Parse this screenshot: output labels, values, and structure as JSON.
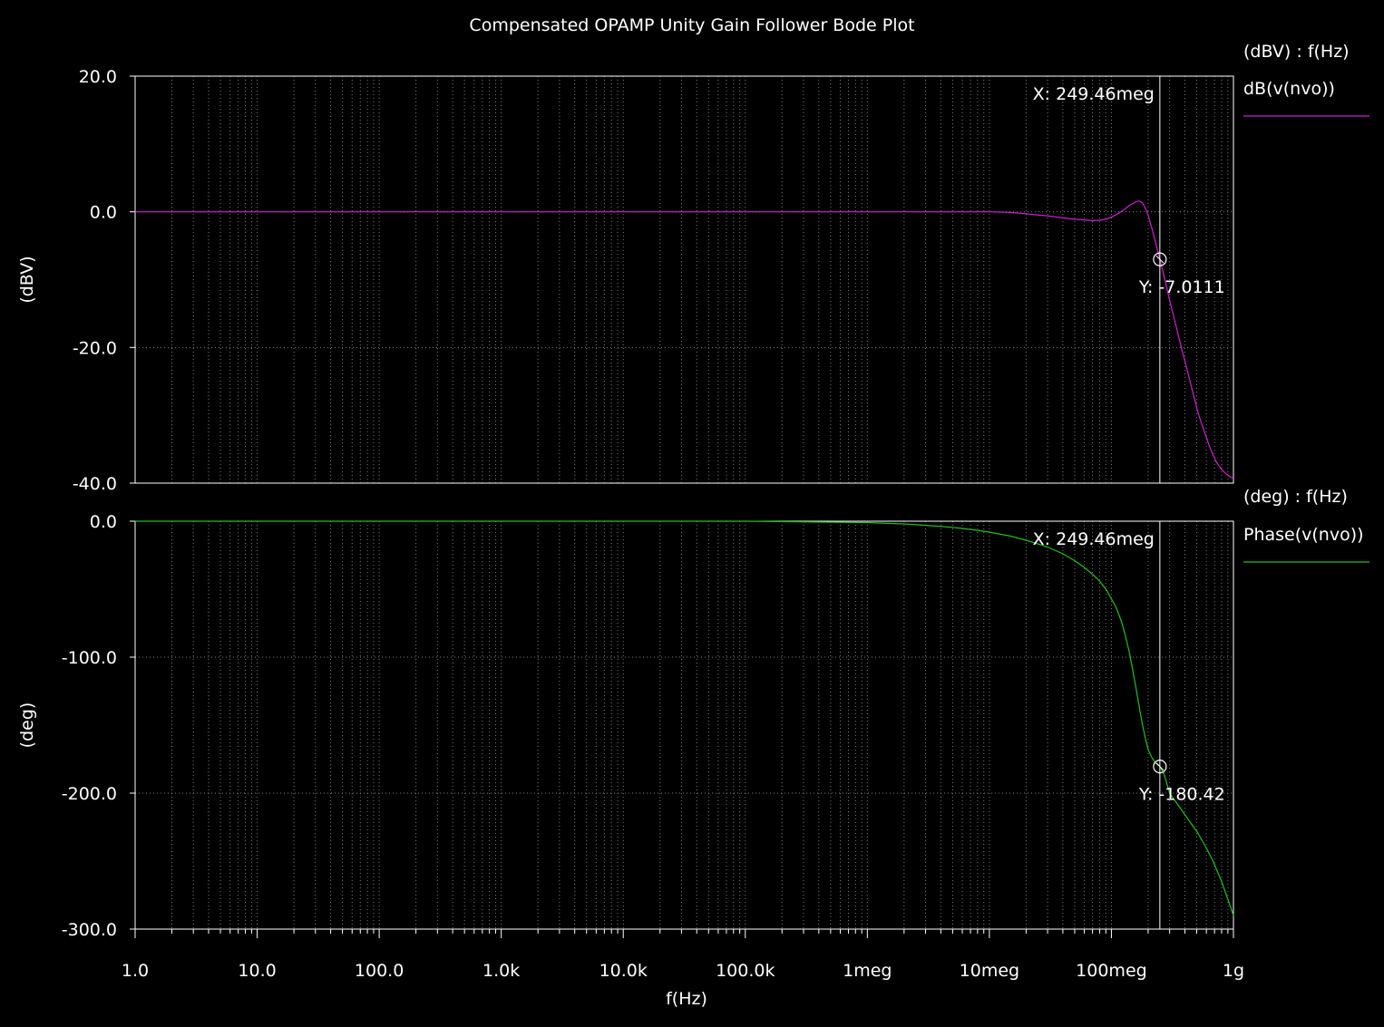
{
  "chart_data": {
    "type": "line",
    "title": "Compensated OPAMP Unity Gain Follower Bode Plot",
    "xlabel": "f(Hz)",
    "xscale": "log",
    "xlim": [
      1,
      1000000000
    ],
    "x_ticks": [
      {
        "value": 1,
        "label": "1.0"
      },
      {
        "value": 10,
        "label": "10.0"
      },
      {
        "value": 100,
        "label": "100.0"
      },
      {
        "value": 1000,
        "label": "1.0k"
      },
      {
        "value": 10000,
        "label": "10.0k"
      },
      {
        "value": 100000,
        "label": "100.0k"
      },
      {
        "value": 1000000,
        "label": "1meg"
      },
      {
        "value": 10000000,
        "label": "10meg"
      },
      {
        "value": 100000000,
        "label": "100meg"
      },
      {
        "value": 1000000000,
        "label": "1g"
      }
    ],
    "grid": true,
    "legend_position": "right",
    "cursor": {
      "x": 249460000,
      "x_label": "X: 249.46meg"
    },
    "panels": [
      {
        "id": "magnitude",
        "ylabel": "(dBV)",
        "ylim": [
          -40,
          20
        ],
        "y_ticks": [
          {
            "value": 20,
            "label": "20.0"
          },
          {
            "value": 0,
            "label": "0.0"
          },
          {
            "value": -20,
            "label": "-20.0"
          },
          {
            "value": -40,
            "label": "-40.0"
          }
        ],
        "legend_header": "(dBV) : f(Hz)",
        "series": [
          {
            "name": "dB(v(nvo))",
            "color": "#d020d0",
            "x": [
              1,
              10,
              100,
              1000,
              10000,
              100000,
              1000000,
              10000000,
              15000000,
              20000000,
              30000000,
              40000000,
              50000000,
              60000000,
              70000000,
              80000000,
              90000000,
              100000000,
              120000000,
              140000000,
              160000000,
              170000000,
              180000000,
              190000000,
              200000000,
              215000000,
              230000000,
              249460000,
              270000000,
              300000000,
              340000000,
              380000000,
              420000000,
              470000000,
              520000000,
              580000000,
              650000000,
              720000000,
              800000000,
              880000000,
              950000000,
              1000000000
            ],
            "y": [
              0,
              0,
              0,
              0,
              0,
              0,
              0,
              0,
              -0.1,
              -0.3,
              -0.6,
              -0.9,
              -1.1,
              -1.2,
              -1.3,
              -1.25,
              -1.1,
              -0.8,
              0,
              0.9,
              1.5,
              1.6,
              1.3,
              0.5,
              -0.5,
              -2.5,
              -4.5,
              -7.0111,
              -9.5,
              -13,
              -17,
              -20.5,
              -23.5,
              -27,
              -30,
              -32.5,
              -35,
              -36.8,
              -38,
              -38.7,
              -39.1,
              -39.3
            ]
          }
        ],
        "cursor_y_label": "Y: -7.0111",
        "cursor_y": -7.0111
      },
      {
        "id": "phase",
        "ylabel": "(deg)",
        "ylim": [
          -300,
          0
        ],
        "y_ticks": [
          {
            "value": 0,
            "label": "0.0"
          },
          {
            "value": -100,
            "label": "-100.0"
          },
          {
            "value": -200,
            "label": "-200.0"
          },
          {
            "value": -300,
            "label": "-300.0"
          }
        ],
        "legend_header": "(deg) : f(Hz)",
        "series": [
          {
            "name": "Phase(v(nvo))",
            "color": "#20c020",
            "x": [
              1,
              10,
              100,
              1000,
              10000,
              100000,
              1000000,
              2000000,
              3000000,
              5000000,
              7000000,
              10000000,
              15000000,
              20000000,
              30000000,
              40000000,
              50000000,
              60000000,
              70000000,
              80000000,
              90000000,
              100000000,
              110000000,
              120000000,
              130000000,
              140000000,
              150000000,
              160000000,
              170000000,
              180000000,
              190000000,
              200000000,
              215000000,
              230000000,
              249460000,
              270000000,
              300000000,
              340000000,
              380000000,
              430000000,
              500000000,
              580000000,
              680000000,
              800000000,
              900000000,
              1000000000
            ],
            "y": [
              0,
              0,
              0,
              0,
              0,
              0,
              -1,
              -2,
              -3,
              -4.5,
              -6,
              -8,
              -11,
              -14,
              -19,
              -24,
              -29,
              -34,
              -39,
              -44,
              -50,
              -57,
              -64,
              -73,
              -84,
              -96,
              -110,
              -124,
              -138,
              -150,
              -160,
              -168,
              -174,
              -178,
              -180.42,
              -186,
              -200,
              -207,
              -213,
              -220,
              -228,
              -238,
              -250,
              -265,
              -278,
              -290
            ]
          }
        ],
        "cursor_y_label": "Y: -180.42",
        "cursor_y": -180.42
      }
    ]
  }
}
